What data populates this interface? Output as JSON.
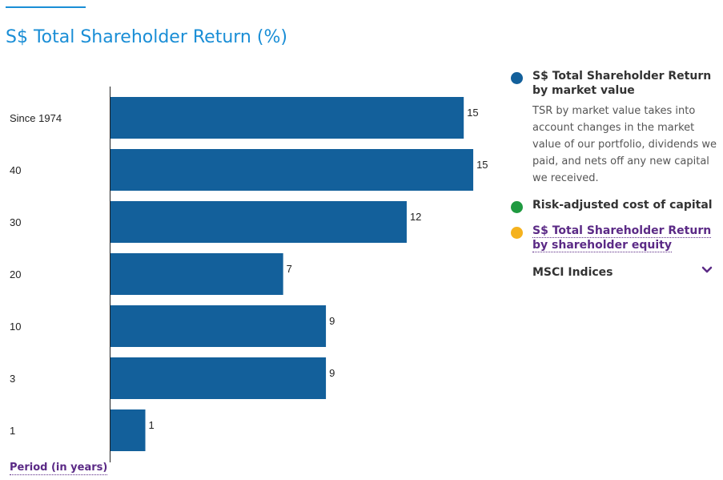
{
  "title": "S$ Total Shareholder Return (%)",
  "axis_title": "Period (in years)",
  "colors": {
    "bar": "#13609b",
    "title": "#1a8ed6",
    "link": "#5b2a86"
  },
  "chart_data": {
    "type": "bar",
    "orientation": "horizontal",
    "categories": [
      "Since 1974",
      "40",
      "30",
      "20",
      "10",
      "3",
      "1"
    ],
    "series": [
      {
        "name": "S$ Total Shareholder Return by market value",
        "values": [
          15,
          15,
          12,
          7,
          9,
          9,
          1
        ]
      }
    ],
    "bar_extents": [
      14.9,
      15.3,
      12.5,
      7.3,
      9.1,
      9.1,
      1.5
    ],
    "xlim": [
      0,
      15.5
    ],
    "xlabel": "",
    "ylabel": "Period (in years)",
    "grid": false,
    "legend_position": "right"
  },
  "legend": {
    "items": [
      {
        "label": "S$ Total Shareholder Return by market value",
        "color": "#13609b",
        "description": "TSR by market value takes into account changes in the market value of our portfolio, dividends we paid, and nets off any new capital we received."
      },
      {
        "label": "Risk-adjusted cost of capital",
        "color": "#1f9a40"
      },
      {
        "label": "S$ Total Shareholder Return by shareholder equity",
        "color": "#f5b21e"
      }
    ],
    "dropdown": {
      "label": "MSCI Indices",
      "icon": "chevron-down-icon"
    }
  }
}
